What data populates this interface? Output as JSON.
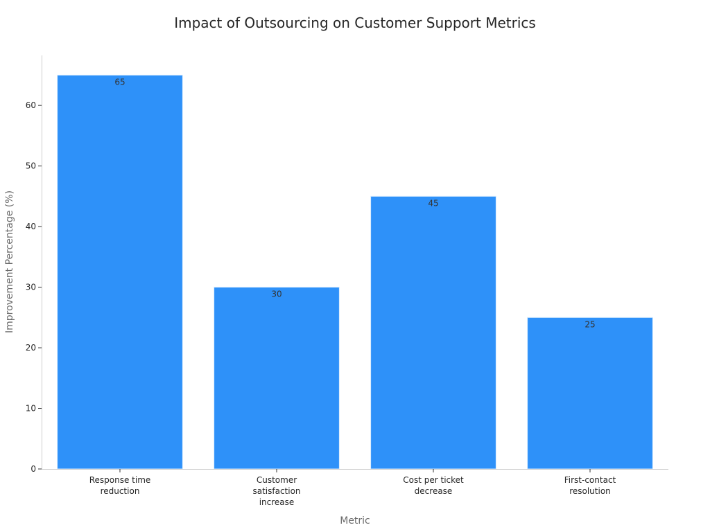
{
  "chart_data": {
    "type": "bar",
    "title": "Impact of Outsourcing on Customer Support Metrics",
    "xlabel": "Metric",
    "ylabel": "Improvement Percentage (%)",
    "categories": [
      [
        "Response time",
        "reduction"
      ],
      [
        "Customer",
        "satisfaction",
        "increase"
      ],
      [
        "Cost per ticket",
        "decrease"
      ],
      [
        "First-contact",
        "resolution"
      ]
    ],
    "values": [
      65,
      30,
      45,
      25
    ],
    "ylim": [
      0,
      68.25
    ],
    "yticks": [
      0,
      10,
      20,
      30,
      40,
      50,
      60
    ],
    "bar_color": "#2e91f9",
    "bar_edge_color": "#d9ecfe",
    "grid": false,
    "legend": false
  }
}
